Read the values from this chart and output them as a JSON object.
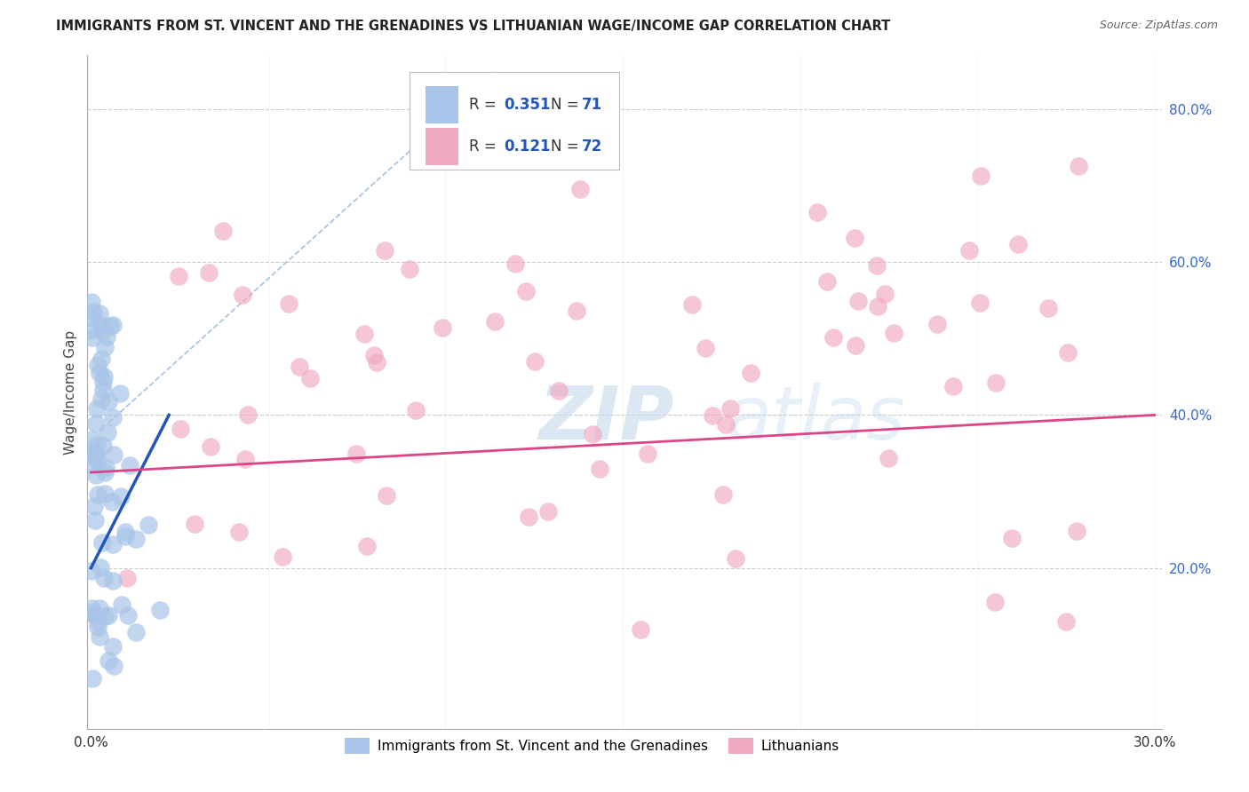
{
  "title": "IMMIGRANTS FROM ST. VINCENT AND THE GRENADINES VS LITHUANIAN WAGE/INCOME GAP CORRELATION CHART",
  "source": "Source: ZipAtlas.com",
  "ylabel": "Wage/Income Gap",
  "blue_R": 0.351,
  "blue_N": 71,
  "pink_R": 0.121,
  "pink_N": 72,
  "blue_color": "#a8c4e8",
  "pink_color": "#f0a8c0",
  "blue_line_color": "#2255bb",
  "pink_line_color": "#dd4488",
  "dashed_line_color": "#99bbdd",
  "watermark_color": "#c5d8ee",
  "blue_legend_label": "Immigrants from St. Vincent and the Grenadines",
  "pink_legend_label": "Lithuanians",
  "xlim": [
    -0.001,
    0.302
  ],
  "ylim": [
    -0.01,
    0.87
  ],
  "yticks": [
    0.0,
    0.2,
    0.4,
    0.6,
    0.8
  ],
  "ytick_labels": [
    "",
    "20.0%",
    "40.0%",
    "60.0%",
    "80.0%"
  ],
  "xtick_positions": [
    0.0,
    0.05,
    0.1,
    0.15,
    0.2,
    0.25,
    0.3
  ],
  "xtick_labels": [
    "0.0%",
    "",
    "",
    "",
    "",
    "",
    "30.0%"
  ],
  "blue_seed": 1234,
  "pink_seed": 5678
}
